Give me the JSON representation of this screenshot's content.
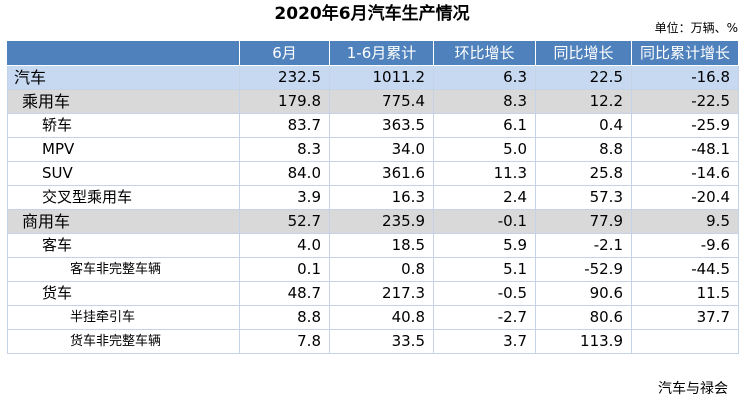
{
  "title": "2020年6月汽车生产情况",
  "unit": "单位：万辆、%",
  "headers": [
    "",
    "6月",
    "1-6月累计",
    "环比增长",
    "同比增长",
    "同比累计增长"
  ],
  "rows": [
    {
      "name": "汽车",
      "level": 0,
      "values": [
        "232.5",
        "1011.2",
        "6.3",
        "22.5",
        "-16.8"
      ]
    },
    {
      "name": "乘用车",
      "level": 1,
      "values": [
        "179.8",
        "775.4",
        "8.3",
        "12.2",
        "-22.5"
      ]
    },
    {
      "name": "轿车",
      "level": 2,
      "values": [
        "83.7",
        "363.5",
        "6.1",
        "0.4",
        "-25.9"
      ]
    },
    {
      "name": "MPV",
      "level": 2,
      "values": [
        "8.3",
        "34.0",
        "5.0",
        "8.8",
        "-48.1"
      ]
    },
    {
      "name": "SUV",
      "level": 2,
      "values": [
        "84.0",
        "361.6",
        "11.3",
        "25.8",
        "-14.6"
      ]
    },
    {
      "name": "交叉型乘用车",
      "level": 2,
      "values": [
        "3.9",
        "16.3",
        "2.4",
        "57.3",
        "-20.4"
      ]
    },
    {
      "name": "商用车",
      "level": 1,
      "values": [
        "52.7",
        "235.9",
        "-0.1",
        "77.9",
        "9.5"
      ]
    },
    {
      "name": "客车",
      "level": 2,
      "values": [
        "4.0",
        "18.5",
        "5.9",
        "-2.1",
        "-9.6"
      ]
    },
    {
      "name": "客车非完整车辆",
      "level": 3,
      "values": [
        "0.1",
        "0.8",
        "5.1",
        "-52.9",
        "-44.5"
      ]
    },
    {
      "name": "货车",
      "level": 2,
      "values": [
        "48.7",
        "217.3",
        "-0.5",
        "90.6",
        "11.5"
      ]
    },
    {
      "name": "半挂牵引车",
      "level": 3,
      "values": [
        "8.8",
        "40.8",
        "-2.7",
        "80.6",
        "37.7"
      ]
    },
    {
      "name": "货车非完整车辆",
      "level": 3,
      "values": [
        "7.8",
        "33.5",
        "3.7",
        "113.9",
        ""
      ]
    }
  ],
  "watermark": "汽车与禄会"
}
